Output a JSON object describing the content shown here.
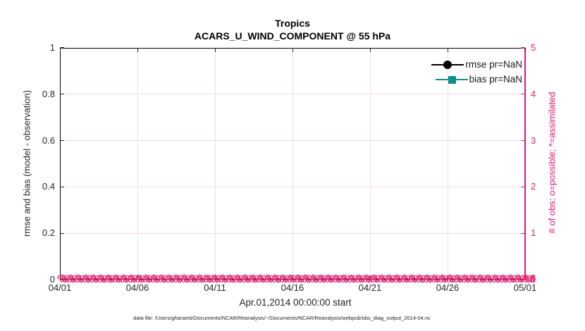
{
  "figure": {
    "title_line1": "Tropics",
    "title_line2": "ACARS_U_WIND_COMPONENT @ 55 hPa",
    "xlabel": "Apr.01,2014 00:00:00 start",
    "ylabel_left": "rmse and bias (model - observation)",
    "ylabel_right": "# of obs: o=possible; *=assimilated",
    "footer": "data file: /Users/gharamti/Documents/NCAR/Reanalysis/~/Documents/NCAR/Reanalysis/webpub/obs_diag_output_2014-04.nc"
  },
  "axes": {
    "x_ticks": [
      "04/01",
      "04/06",
      "04/11",
      "04/16",
      "04/21",
      "04/26",
      "05/01"
    ],
    "y_left_ticks": [
      "0",
      "0.2",
      "0.4",
      "0.6",
      "0.8",
      "1"
    ],
    "y_right_ticks": [
      "0",
      "1",
      "2",
      "3",
      "4",
      "5"
    ]
  },
  "legend": {
    "items": [
      {
        "label": "rmse pr=NaN",
        "marker": "circle",
        "color": "#000000"
      },
      {
        "label": "bias pr=NaN",
        "marker": "square",
        "color": "#0d8f89"
      }
    ]
  },
  "colors": {
    "right_axis_magenta": "#e2176b",
    "bias_teal": "#0d8f89",
    "rmse_black": "#000000",
    "horizontal_grid_pink": "#f8d8e6",
    "vertical_grid_gray": "#e4e4e4"
  },
  "obs_band": {
    "pattern": "o⊗",
    "repeat": 72,
    "description": "dense overlapping magenta o (possible) and * (assimilated) markers along y=0"
  },
  "chart_data": {
    "type": "line",
    "title": "Tropics",
    "subtitle": "ACARS_U_WIND_COMPONENT @ 55 hPa",
    "xlabel": "Apr.01,2014 00:00:00 start",
    "ylabel_left": "rmse and bias (model - observation)",
    "ylabel_right": "# of obs: o=possible; *=assimilated",
    "x_tick_labels": [
      "04/01",
      "04/06",
      "04/11",
      "04/16",
      "04/21",
      "04/26",
      "05/01"
    ],
    "x_range": [
      "2014-04-01",
      "2014-05-01"
    ],
    "ylim_left": [
      0,
      1
    ],
    "ylim_right": [
      0,
      5
    ],
    "grid": true,
    "legend_position": "upper-right-inside",
    "series": [
      {
        "name": "rmse pr=NaN",
        "axis": "left",
        "color": "#000000",
        "marker": "filled-circle",
        "values": "NaN (no curve drawn)"
      },
      {
        "name": "bias pr=NaN",
        "axis": "left",
        "color": "#0d8f89",
        "marker": "filled-square",
        "values": "NaN (no curve drawn)"
      },
      {
        "name": "# of obs possible (o)",
        "axis": "right",
        "color": "#e2176b",
        "marker": "o",
        "constant_value": 0,
        "x_span": [
          "04/01",
          "05/01"
        ]
      },
      {
        "name": "# of obs assimilated (*)",
        "axis": "right",
        "color": "#e2176b",
        "marker": "*",
        "constant_value": 0,
        "x_span": [
          "04/01",
          "05/01"
        ]
      }
    ],
    "notes": "rmse and bias series are NaN so no curves appear; observation counts are 0 for every time bin, shown as a dense band of magenta o/* markers along y=0 from 04/01 through 05/01"
  }
}
